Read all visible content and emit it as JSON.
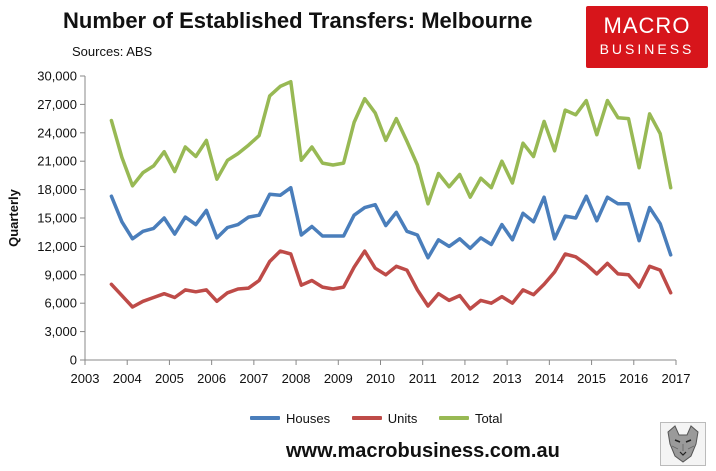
{
  "header": {
    "title": "Number of Established Transfers: Melbourne",
    "sources": "Sources: ABS"
  },
  "logo": {
    "line1": "MACRO",
    "line2": "BUSINESS",
    "color": "#d7151b"
  },
  "footer": {
    "url": "www.macrobusiness.com.au",
    "icon": "wolf-icon"
  },
  "chart_data": {
    "type": "line",
    "title": "Number of Established Transfers: Melbourne",
    "ylabel": "Quarterly",
    "xlabel": "",
    "xlim": [
      2003,
      2017
    ],
    "ylim": [
      0,
      30000
    ],
    "yticks": [
      0,
      3000,
      6000,
      9000,
      12000,
      15000,
      18000,
      21000,
      24000,
      27000,
      30000
    ],
    "ytick_labels": [
      "0",
      "3,000",
      "6,000",
      "9,000",
      "12,000",
      "15,000",
      "18,000",
      "21,000",
      "24,000",
      "27,000",
      "30,000"
    ],
    "xticks": [
      2003,
      2004,
      2005,
      2006,
      2007,
      2008,
      2009,
      2010,
      2011,
      2012,
      2013,
      2014,
      2015,
      2016,
      2017
    ],
    "grid": false,
    "legend_position": "bottom",
    "x": [
      2003.625,
      2003.875,
      2004.125,
      2004.375,
      2004.625,
      2004.875,
      2005.125,
      2005.375,
      2005.625,
      2005.875,
      2006.125,
      2006.375,
      2006.625,
      2006.875,
      2007.125,
      2007.375,
      2007.625,
      2007.875,
      2008.125,
      2008.375,
      2008.625,
      2008.875,
      2009.125,
      2009.375,
      2009.625,
      2009.875,
      2010.125,
      2010.375,
      2010.625,
      2010.875,
      2011.125,
      2011.375,
      2011.625,
      2011.875,
      2012.125,
      2012.375,
      2012.625,
      2012.875,
      2013.125,
      2013.375,
      2013.625,
      2013.875,
      2014.125,
      2014.375,
      2014.625,
      2014.875,
      2015.125,
      2015.375,
      2015.625,
      2015.875,
      2016.125,
      2016.375,
      2016.625,
      2016.875
    ],
    "series": [
      {
        "name": "Houses",
        "color": "#4a7ebb",
        "values": [
          17300,
          14600,
          12800,
          13600,
          13900,
          15000,
          13300,
          15100,
          14300,
          15800,
          12900,
          14000,
          14300,
          15100,
          15300,
          17500,
          17400,
          18200,
          13200,
          14100,
          13100,
          13100,
          13100,
          15300,
          16100,
          16400,
          14200,
          15600,
          13600,
          13200,
          10800,
          12700,
          12000,
          12800,
          11800,
          12900,
          12200,
          14300,
          12700,
          15500,
          14600,
          17200,
          12800,
          15200,
          15000,
          17300,
          14700,
          17200,
          16500,
          16500,
          12600,
          16100,
          14400,
          11100
        ]
      },
      {
        "name": "Units",
        "color": "#be4b48",
        "values": [
          8000,
          6800,
          5600,
          6200,
          6600,
          7000,
          6600,
          7400,
          7200,
          7400,
          6200,
          7100,
          7500,
          7600,
          8400,
          10400,
          11500,
          11200,
          7900,
          8400,
          7700,
          7500,
          7700,
          9800,
          11500,
          9700,
          9000,
          9900,
          9500,
          7400,
          5700,
          7000,
          6300,
          6800,
          5400,
          6300,
          6000,
          6700,
          6000,
          7400,
          6900,
          8000,
          9300,
          11200,
          10900,
          10100,
          9100,
          10200,
          9100,
          9000,
          7700,
          9900,
          9500,
          7100
        ]
      },
      {
        "name": "Total",
        "color": "#98b954",
        "values": [
          25300,
          21400,
          18400,
          19800,
          20500,
          22000,
          19900,
          22500,
          21500,
          23200,
          19100,
          21100,
          21800,
          22700,
          23700,
          27900,
          28900,
          29400,
          21100,
          22500,
          20800,
          20600,
          20800,
          25100,
          27600,
          26100,
          23200,
          25500,
          23100,
          20600,
          16500,
          19700,
          18300,
          19600,
          17200,
          19200,
          18200,
          21000,
          18700,
          22900,
          21500,
          25200,
          22100,
          26400,
          25900,
          27400,
          23800,
          27400,
          25600,
          25500,
          20300,
          26000,
          23900,
          18200
        ]
      }
    ]
  }
}
